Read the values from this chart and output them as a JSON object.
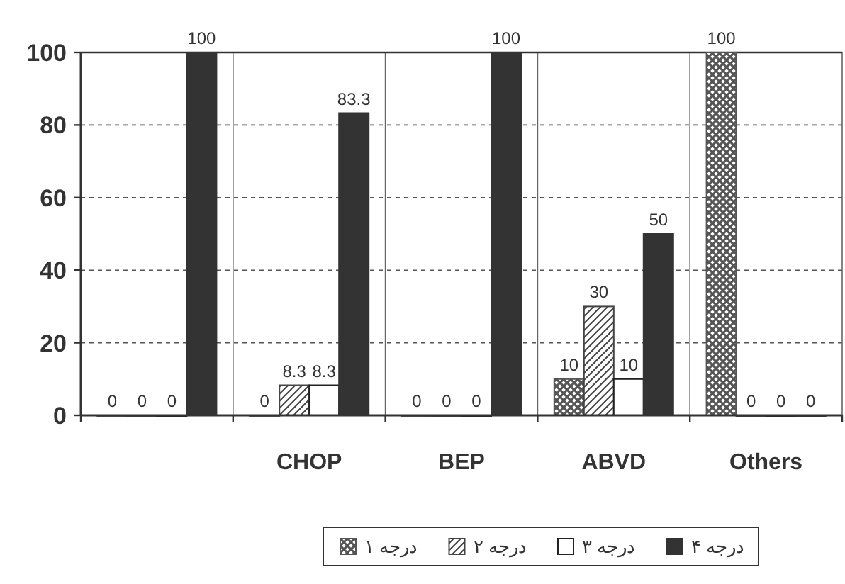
{
  "chart_data": {
    "type": "bar",
    "categories": [
      null,
      "CHOP",
      "BEP",
      "ABVD",
      "Others"
    ],
    "series": [
      {
        "name": "درجه ۱",
        "color": "#555555",
        "values": [
          0,
          0,
          0,
          10,
          100
        ]
      },
      {
        "name": "درجه ۲",
        "color": "#444444",
        "values": [
          0,
          8.3,
          0,
          30,
          0
        ]
      },
      {
        "name": "درجه ۳",
        "color": "#ffffff",
        "values": [
          0,
          8.3,
          0,
          10,
          0
        ]
      },
      {
        "name": "درجه ۴",
        "color": "#333333",
        "values": [
          100,
          83.3,
          100,
          50,
          0
        ]
      }
    ],
    "ylim": [
      0,
      100
    ],
    "yticks": [
      0,
      20,
      40,
      60,
      80,
      100
    ],
    "grid": true,
    "legend": "bottom",
    "data_labels": true
  }
}
